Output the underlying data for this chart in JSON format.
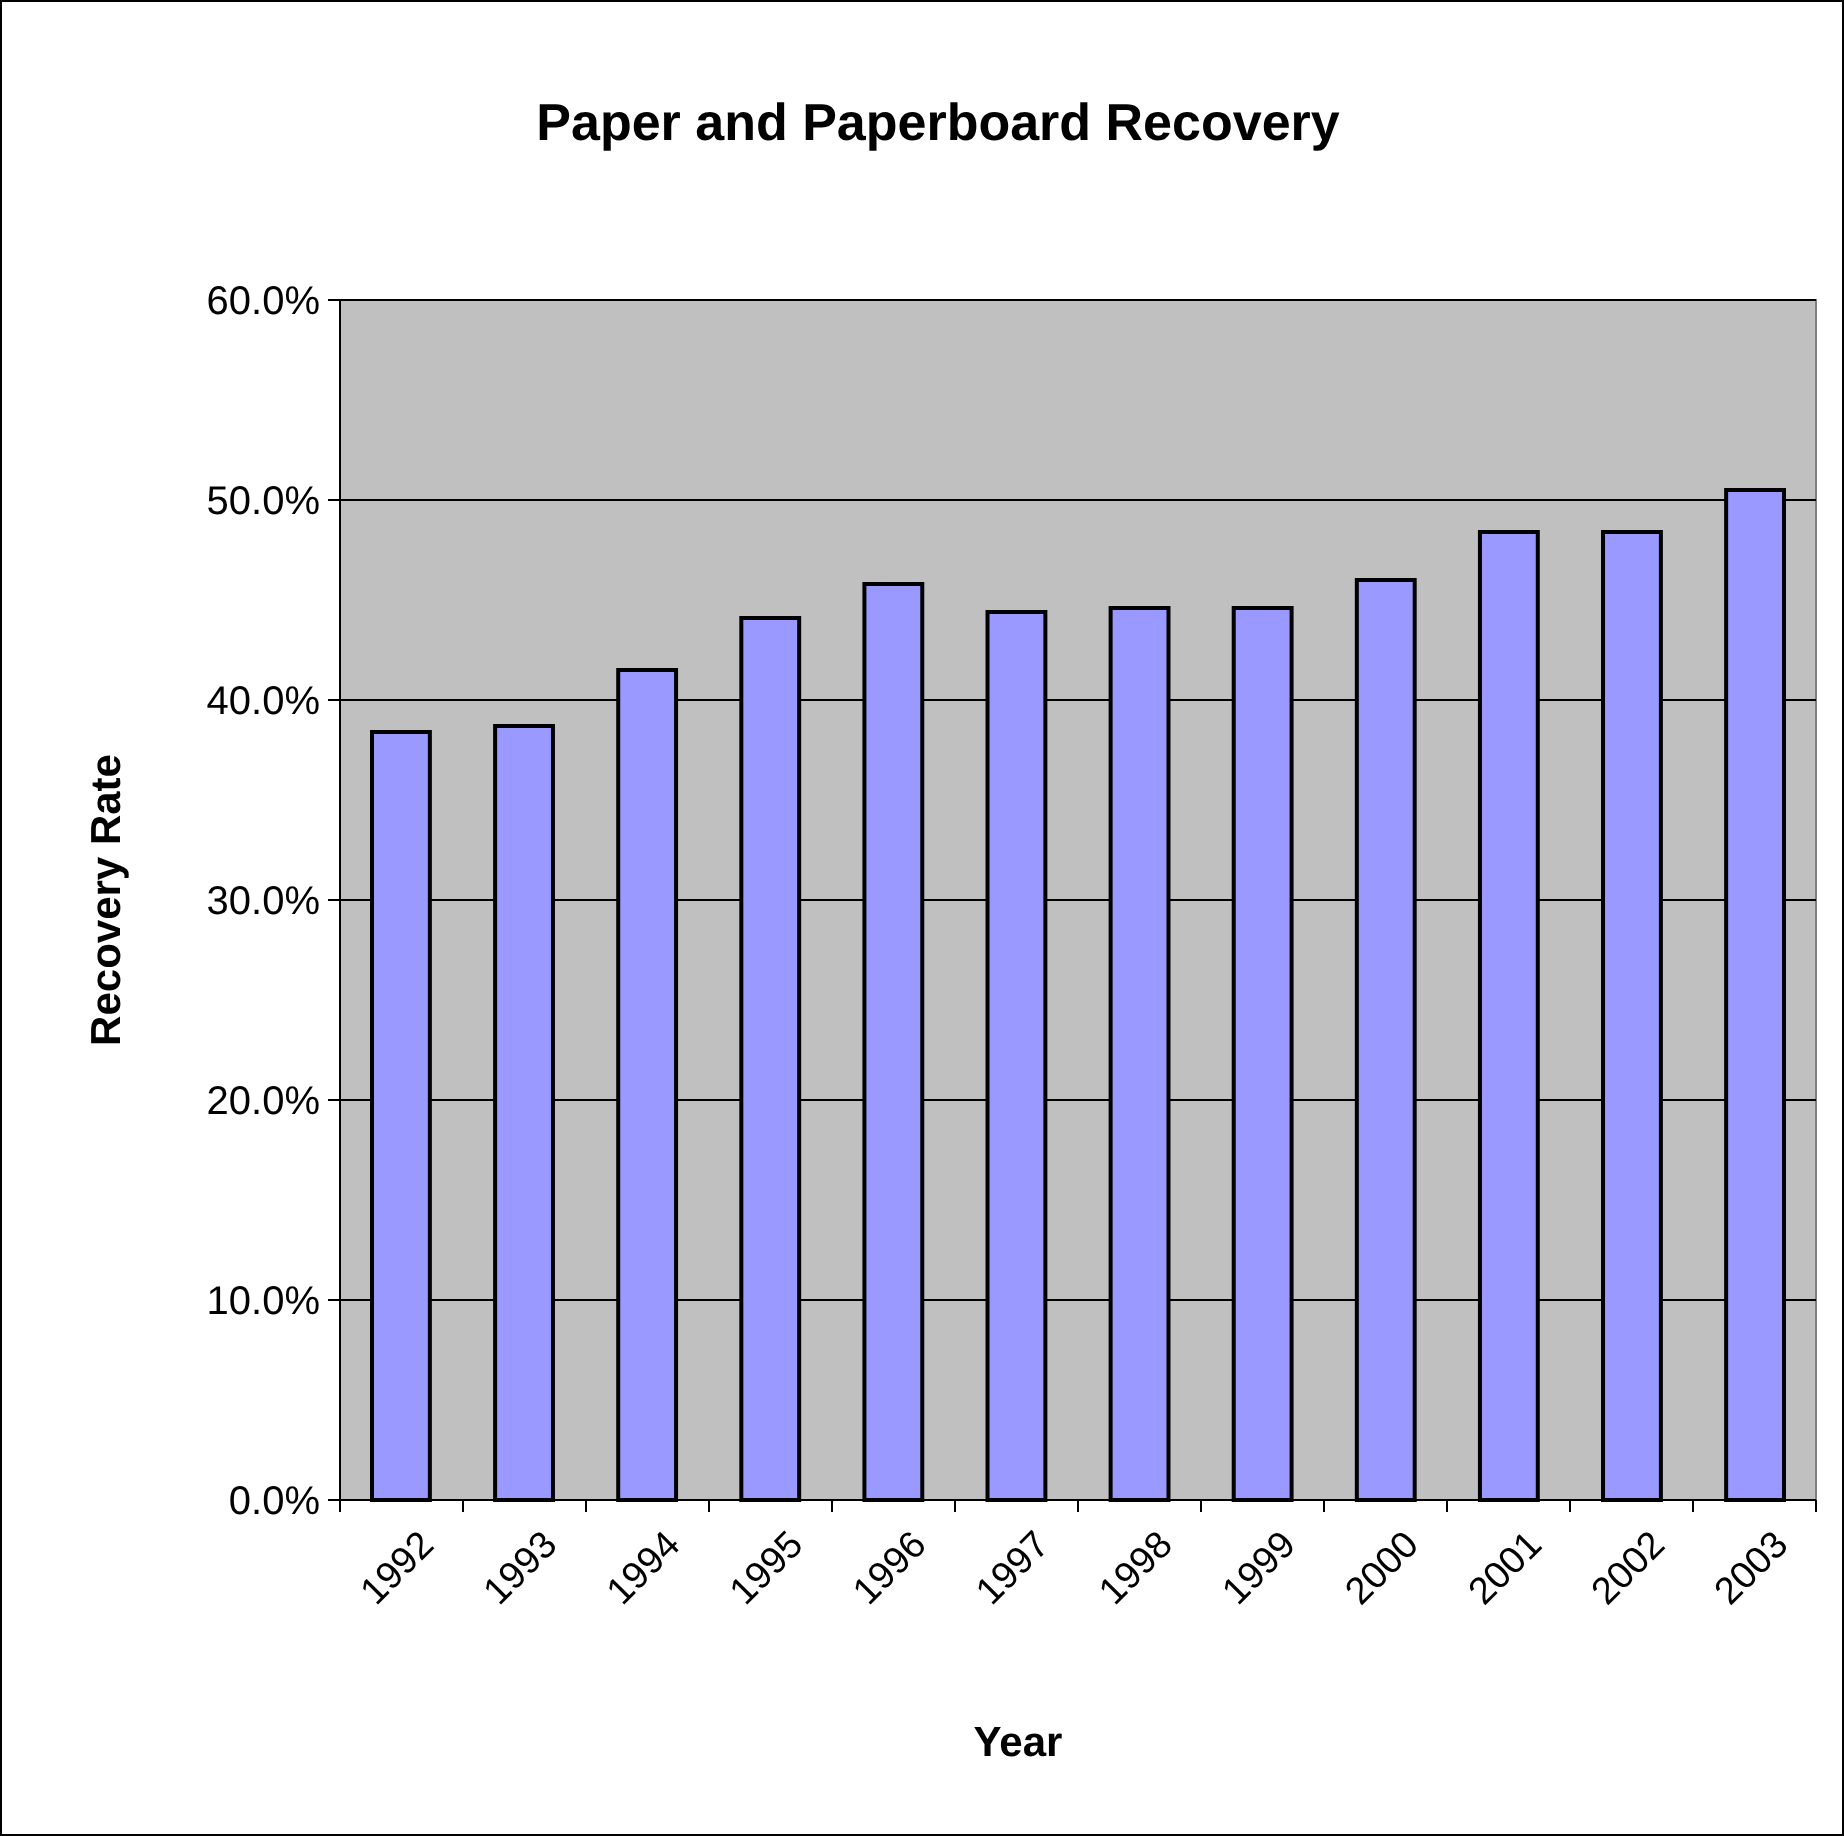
{
  "chart_data": {
    "type": "bar",
    "title": "Paper and Paperboard Recovery",
    "xlabel": "Year",
    "ylabel": "Recovery Rate",
    "categories": [
      "1992",
      "1993",
      "1994",
      "1995",
      "1996",
      "1997",
      "1998",
      "1999",
      "2000",
      "2001",
      "2002",
      "2003"
    ],
    "values": [
      38.4,
      38.7,
      41.5,
      44.1,
      45.8,
      44.4,
      44.6,
      44.6,
      46.0,
      48.4,
      48.4,
      50.5
    ],
    "color": "#9999ff",
    "ylim": [
      0,
      60
    ],
    "yticks": [
      {
        "value": 0,
        "label": "0.0%"
      },
      {
        "value": 10,
        "label": "10.0%"
      },
      {
        "value": 20,
        "label": "20.0%"
      },
      {
        "value": 30,
        "label": "30.0%"
      },
      {
        "value": 40,
        "label": "40.0%"
      },
      {
        "value": 50,
        "label": "50.0%"
      },
      {
        "value": 60,
        "label": "60.0%"
      }
    ],
    "grid": "y"
  }
}
